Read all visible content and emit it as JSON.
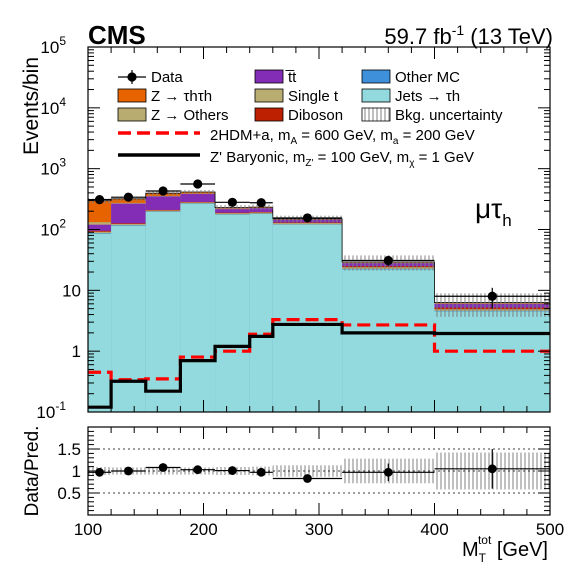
{
  "header": {
    "experiment": "CMS",
    "lumi_value": "59.7 fb",
    "lumi_exp": "-1",
    "lumi_tail": " (13 TeV)",
    "channel_mu": "μτ",
    "channel_sub": "h"
  },
  "colors": {
    "Z_tautau": "#e76300",
    "Z_others": "#b9ac70",
    "ttbar": "#832db6",
    "single_t": "#b9ac70",
    "diboson": "#bd1f01",
    "other_mc": "#3f90da",
    "jets_tauh": "#92dadd",
    "signal_2hdma": "#ff0000",
    "signal_zprime": "#000000",
    "band": "#999999",
    "data": "#000000"
  },
  "chart_data": [
    {
      "type": "bar",
      "ylabel": "Events/bin",
      "xlabel": "M",
      "xlabel_sub": "T",
      "xlabel_sup": "tot",
      "xlabel_unit": " [GeV]",
      "log_y": true,
      "xlim": [
        100,
        500
      ],
      "ylim": [
        0.1,
        100000
      ],
      "x_ticks": [
        100,
        200,
        300,
        400,
        500
      ],
      "y_ticks": [
        {
          "value": 0.1,
          "base": "10",
          "exp": "-1"
        },
        {
          "value": 1,
          "base": "1",
          "exp": ""
        },
        {
          "value": 10,
          "base": "10",
          "exp": ""
        },
        {
          "value": 100,
          "base": "10",
          "exp": "2"
        },
        {
          "value": 1000,
          "base": "10",
          "exp": "3"
        },
        {
          "value": 10000,
          "base": "10",
          "exp": "4"
        },
        {
          "value": 100000,
          "base": "10",
          "exp": "5"
        }
      ],
      "bin_edges": [
        100,
        120,
        150,
        180,
        210,
        240,
        260,
        320,
        400,
        500
      ],
      "stack": [
        {
          "name": "Jets → τh",
          "color_key": "jets_tauh",
          "values": [
            85,
            115,
            195,
            265,
            175,
            180,
            120,
            22,
            4.5
          ]
        },
        {
          "name": "Other MC",
          "color_key": "other_mc",
          "values": [
            2,
            2.5,
            3,
            4,
            2.5,
            2.5,
            1.5,
            0.5,
            0.1
          ]
        },
        {
          "name": "Single t",
          "color_key": "single_t",
          "values": [
            5,
            6,
            8,
            10,
            8,
            8,
            6,
            1.5,
            0.3
          ]
        },
        {
          "name": "Diboson",
          "color_key": "diboson",
          "values": [
            3,
            3,
            4,
            5,
            3.5,
            3.5,
            2.5,
            1,
            0.3
          ]
        },
        {
          "name": "t̅t",
          "color_key": "ttbar",
          "values": [
            25,
            140,
            140,
            100,
            30,
            30,
            15,
            3,
            0.8
          ]
        },
        {
          "name": "Z → Others",
          "color_key": "Z_others",
          "values": [
            12,
            8,
            7,
            5,
            3,
            2.5,
            1.5,
            0.5,
            0.1
          ]
        },
        {
          "name": "Z → τhτh",
          "color_key": "Z_tautau",
          "values": [
            165,
            45,
            38,
            25,
            8,
            7,
            3,
            0.8,
            0.2
          ]
        }
      ],
      "band_rel": [
        0.09,
        0.08,
        0.08,
        0.08,
        0.09,
        0.1,
        0.13,
        0.28,
        0.42
      ],
      "signals": [
        {
          "name": "2HDM+a",
          "color_key": "signal_2hdma",
          "dashed": true,
          "values": [
            0.45,
            0.34,
            0.35,
            0.8,
            1.0,
            1.9,
            3.3,
            2.7,
            1.0
          ]
        },
        {
          "name": "Z' Baryonic",
          "color_key": "signal_zprime",
          "dashed": false,
          "values": [
            0.12,
            0.32,
            0.22,
            0.7,
            1.2,
            1.75,
            2.75,
            2.0,
            1.95
          ]
        }
      ],
      "data": {
        "x": [
          110,
          135,
          165,
          195,
          225,
          250,
          290,
          360,
          450
        ],
        "y": [
          310,
          340,
          430,
          560,
          280,
          275,
          155,
          31,
          8
        ],
        "yerr": [
          18,
          18,
          21,
          24,
          17,
          17,
          12,
          6,
          3
        ]
      },
      "legend": {
        "placement": "top",
        "entries": [
          {
            "label": "Data",
            "kind": "marker",
            "color_key": "data"
          },
          {
            "label": "t̅t",
            "kind": "box",
            "color_key": "ttbar"
          },
          {
            "label": "Other MC",
            "kind": "box",
            "color_key": "other_mc"
          },
          {
            "label": "Z → τhτh",
            "kind": "box",
            "color_key": "Z_tautau"
          },
          {
            "label": "Single t",
            "kind": "box",
            "color_key": "single_t"
          },
          {
            "label": "Jets → τh",
            "kind": "box",
            "color_key": "jets_tauh"
          },
          {
            "label": "Z → Others",
            "kind": "box",
            "color_key": "Z_others"
          },
          {
            "label": "Diboson",
            "kind": "box",
            "color_key": "diboson"
          },
          {
            "label": "Bkg. uncertainty",
            "kind": "hatch",
            "color_key": "band"
          },
          {
            "label": "2HDM+a, m",
            "kind": "dash",
            "color_key": "signal_2hdma",
            "rest": [
              {
                "sub": "A"
              },
              {
                "text": " = 600 GeV, m"
              },
              {
                "sub": "a"
              },
              {
                "text": " = 200 GeV"
              }
            ]
          },
          {
            "label": "Z' Baryonic, m",
            "kind": "line",
            "color_key": "signal_zprime",
            "rest": [
              {
                "sub": "Z'"
              },
              {
                "text": " = 100 GeV, m"
              },
              {
                "sub": "χ"
              },
              {
                "text": " = 1 GeV"
              }
            ]
          }
        ]
      }
    },
    {
      "type": "scatter",
      "ylabel": "Data/Pred.",
      "xlim": [
        100,
        500
      ],
      "ylim": [
        0,
        2
      ],
      "y_ticks": [
        "0.5",
        "1",
        "1.5"
      ],
      "y_tick_values": [
        0.5,
        1,
        1.5
      ],
      "gridlines": [
        0.5,
        1,
        1.5
      ],
      "bin_edges": [
        100,
        120,
        150,
        180,
        210,
        240,
        260,
        320,
        400,
        500
      ],
      "band_rel": [
        0.09,
        0.08,
        0.08,
        0.08,
        0.09,
        0.1,
        0.13,
        0.28,
        0.42
      ],
      "x": [
        110,
        135,
        165,
        195,
        225,
        250,
        290,
        360,
        450
      ],
      "y": [
        0.97,
        1.0,
        1.08,
        1.03,
        1.01,
        0.97,
        0.83,
        0.97,
        1.05
      ],
      "yerr": [
        0.06,
        0.06,
        0.06,
        0.05,
        0.06,
        0.06,
        0.08,
        0.2,
        0.45
      ]
    }
  ]
}
